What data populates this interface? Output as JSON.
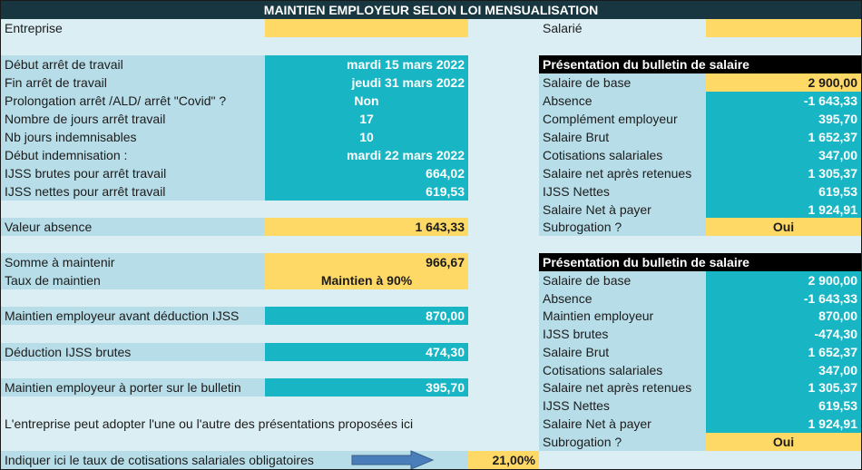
{
  "title": "MAINTIEN EMPLOYEUR SELON LOI MENSUALISATION",
  "labels": {
    "entreprise": "Entreprise",
    "salarie": "Salarié",
    "debut_arret": "Début arrêt de travail",
    "fin_arret": "Fin arrêt de travail",
    "prolongation": "Prolongation arrêt /ALD/ arrêt \"Covid\" ?",
    "nb_jours_arret": "Nombre de jours arrêt travail",
    "nb_jours_indemn": "Nb jours indemnisables",
    "debut_indemn": "Début indemnisation :",
    "ijss_brutes": "IJSS brutes pour arrêt travail",
    "ijss_nettes": "IJSS nettes pour arrêt travail",
    "valeur_absence": "Valeur absence",
    "somme_maintenir": "Somme à maintenir",
    "taux_maintien": "Taux de maintien",
    "maintien_avant": "Maintien employeur avant déduction IJSS",
    "deduction_ijss": "Déduction IJSS brutes",
    "maintien_bulletin": "Maintien employeur à porter sur le bulletin",
    "note": "L'entreprise peut adopter l'une ou l'autre des présentations proposées ici",
    "taux_cotis": "Indiquer ici le taux de cotisations salariales obligatoires"
  },
  "values": {
    "debut_arret": "mardi 15 mars 2022",
    "fin_arret": "jeudi 31 mars 2022",
    "prolongation": "Non",
    "nb_jours_arret": "17",
    "nb_jours_indemn": "10",
    "debut_indemn": "mardi 22 mars 2022",
    "ijss_brutes": "664,02",
    "ijss_nettes": "619,53",
    "valeur_absence": "1 643,33",
    "somme_maintenir": "966,67",
    "taux_maintien": "Maintien à 90%",
    "maintien_avant": "870,00",
    "deduction_ijss": "474,30",
    "maintien_bulletin": "395,70",
    "taux_cotis": "21,00%"
  },
  "bulletin1": {
    "header": "Présentation du bulletin de salaire",
    "rows": [
      {
        "label": "Salaire de base",
        "value": "2 900,00"
      },
      {
        "label": "Absence",
        "value": "-1 643,33"
      },
      {
        "label": "Complément employeur",
        "value": "395,70"
      },
      {
        "label": "Salaire Brut",
        "value": "1 652,37"
      },
      {
        "label": "Cotisations salariales",
        "value": "347,00"
      },
      {
        "label": "Salaire net après retenues",
        "value": "1 305,37"
      },
      {
        "label": "IJSS Nettes",
        "value": "619,53"
      },
      {
        "label": "Salaire Net à payer",
        "value": "1 924,91"
      },
      {
        "label": "Subrogation ?",
        "value": "Oui"
      }
    ]
  },
  "bulletin2": {
    "header": "Présentation du bulletin de salaire",
    "rows": [
      {
        "label": "Salaire de base",
        "value": "2 900,00"
      },
      {
        "label": "Absence",
        "value": "-1 643,33"
      },
      {
        "label": "Maintien employeur",
        "value": "870,00"
      },
      {
        "label": "IJSS brutes",
        "value": "-474,30"
      },
      {
        "label": "Salaire Brut",
        "value": "1 652,37"
      },
      {
        "label": "Cotisations salariales",
        "value": "347,00"
      },
      {
        "label": "Salaire net après retenues",
        "value": "1 305,37"
      },
      {
        "label": "IJSS Nettes",
        "value": "619,53"
      },
      {
        "label": "Salaire Net à payer",
        "value": "1 924,91"
      },
      {
        "label": "Subrogation ?",
        "value": "Oui"
      }
    ]
  },
  "colors": {
    "title_bg": "#17363f",
    "sheet_bg": "#daeef3",
    "label_band": "#b7dde8",
    "teal": "#18b6c5",
    "gold": "#ffd966",
    "arrow": "#4a7ebb"
  },
  "icons": {
    "arrow": "right-arrow-icon"
  }
}
